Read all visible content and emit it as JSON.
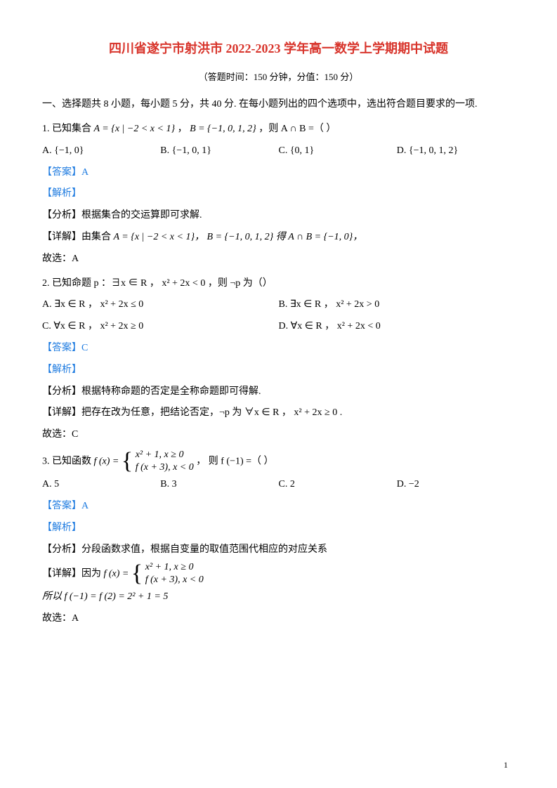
{
  "title": "四川省遂宁市射洪市 2022-2023 学年高一数学上学期期中试题",
  "subtitle": "（答题时间：150 分钟，分值：150 分）",
  "intro": "一、选择题共 8 小题，每小题 5 分，共 40 分. 在每小题列出的四个选项中，选出符合题目要求的一项.",
  "q1": {
    "stem_prefix": "1.  已知集合 ",
    "setA": "A = {x | −2 < x < 1}",
    "setB": "B = {−1, 0, 1, 2}",
    "stem_suffix": "，则 A ∩ B =（ ）",
    "optA": "A.  {−1, 0}",
    "optB": "B.  {−1, 0, 1}",
    "optC": "C.  {0, 1}",
    "optD": "D.  {−1, 0, 1, 2}",
    "answer": "【答案】A",
    "analysis": "【解析】",
    "fenxi": "【分析】根据集合的交运算即可求解.",
    "detail_prefix": "【详解】由集合 ",
    "detail_mid": "A = {x | −2 < x < 1}， B = {−1, 0, 1, 2} 得 A ∩ B = {−1, 0}，",
    "conclusion": "故选：A"
  },
  "q2": {
    "stem": "2.  已知命题 p ：∃x ∈ R ， x² + 2x < 0 ，则 ¬p 为（）",
    "optA": "A.  ∃x ∈ R ， x² + 2x ≤ 0",
    "optB": "B.  ∃x ∈ R ， x² + 2x > 0",
    "optC": "C.  ∀x ∈ R ， x² + 2x ≥ 0",
    "optD": "D.  ∀x ∈ R ， x² + 2x < 0",
    "answer": "【答案】C",
    "analysis": "【解析】",
    "fenxi": "【分析】根据特称命题的否定是全称命题即可得解.",
    "detail": "【详解】把存在改为任意，把结论否定，¬p 为 ∀x ∈ R ， x² + 2x ≥ 0 .",
    "conclusion": "故选：C"
  },
  "q3": {
    "stem_prefix": "3.  已知函数 ",
    "fx_label": "f (x) = ",
    "row1": "x² + 1,  x ≥ 0",
    "row2": "f (x + 3),  x < 0",
    "stem_suffix": "，  则 f (−1) =（ ）",
    "optA": "A. 5",
    "optB": "B.  3",
    "optC": "C.  2",
    "optD": "D.  −2",
    "answer": "【答案】A",
    "analysis": "【解析】",
    "fenxi": "【分析】分段函数求值，根据自变量的取值范围代相应的对应关系",
    "detail_prefix": "【详解】因为 ",
    "drow1": "x² + 1, x ≥ 0",
    "drow2": "f (x + 3), x < 0",
    "calc": "所以 f (−1) = f (2) = 2² + 1 = 5",
    "conclusion": "故选：A"
  },
  "pagenum": "1"
}
